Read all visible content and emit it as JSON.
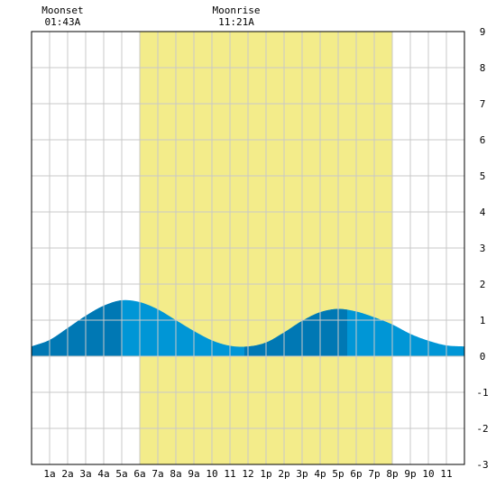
{
  "chart_data": {
    "type": "area",
    "title": "",
    "xlabel": "",
    "ylabel": "",
    "x_range_hours": [
      0,
      24
    ],
    "ylim": [
      -3,
      9
    ],
    "yticks": [
      -3,
      -2,
      -1,
      0,
      1,
      2,
      3,
      4,
      5,
      6,
      7,
      8,
      9
    ],
    "xtick_labels": [
      "1a",
      "2a",
      "3a",
      "4a",
      "5a",
      "6a",
      "7a",
      "8a",
      "9a",
      "10",
      "11",
      "12",
      "1p",
      "2p",
      "3p",
      "4p",
      "5p",
      "6p",
      "7p",
      "8p",
      "9p",
      "10",
      "11"
    ],
    "grid": true,
    "daylight_hours": [
      6.0,
      20.0
    ],
    "events": [
      {
        "name": "Moonset",
        "time": "01:43A",
        "hour": 1.72
      },
      {
        "name": "Moonrise",
        "time": "11:21A",
        "hour": 11.35
      }
    ],
    "tide_curve": {
      "hours": [
        0,
        1,
        2,
        3,
        4,
        5,
        6,
        7,
        8,
        9,
        10,
        11,
        12,
        13,
        14,
        15,
        16,
        17,
        18,
        19,
        20,
        21,
        22,
        23,
        24
      ],
      "heights": [
        0.27,
        0.45,
        0.78,
        1.12,
        1.4,
        1.55,
        1.5,
        1.3,
        1.0,
        0.7,
        0.44,
        0.29,
        0.27,
        0.38,
        0.66,
        0.98,
        1.22,
        1.31,
        1.24,
        1.08,
        0.88,
        0.62,
        0.43,
        0.3,
        0.27
      ]
    },
    "extremes": [
      {
        "type": "high",
        "hour": 5.0,
        "height": 1.55
      },
      {
        "type": "low",
        "hour": 11.8,
        "height": 0.27
      },
      {
        "type": "high",
        "hour": 17.5,
        "height": 1.31
      }
    ],
    "colors": {
      "daylight": "#f3ec8a",
      "water": "#0096d6",
      "water_dark": "#0078b4",
      "grid": "#c8c8c8",
      "frame": "#000000"
    }
  }
}
